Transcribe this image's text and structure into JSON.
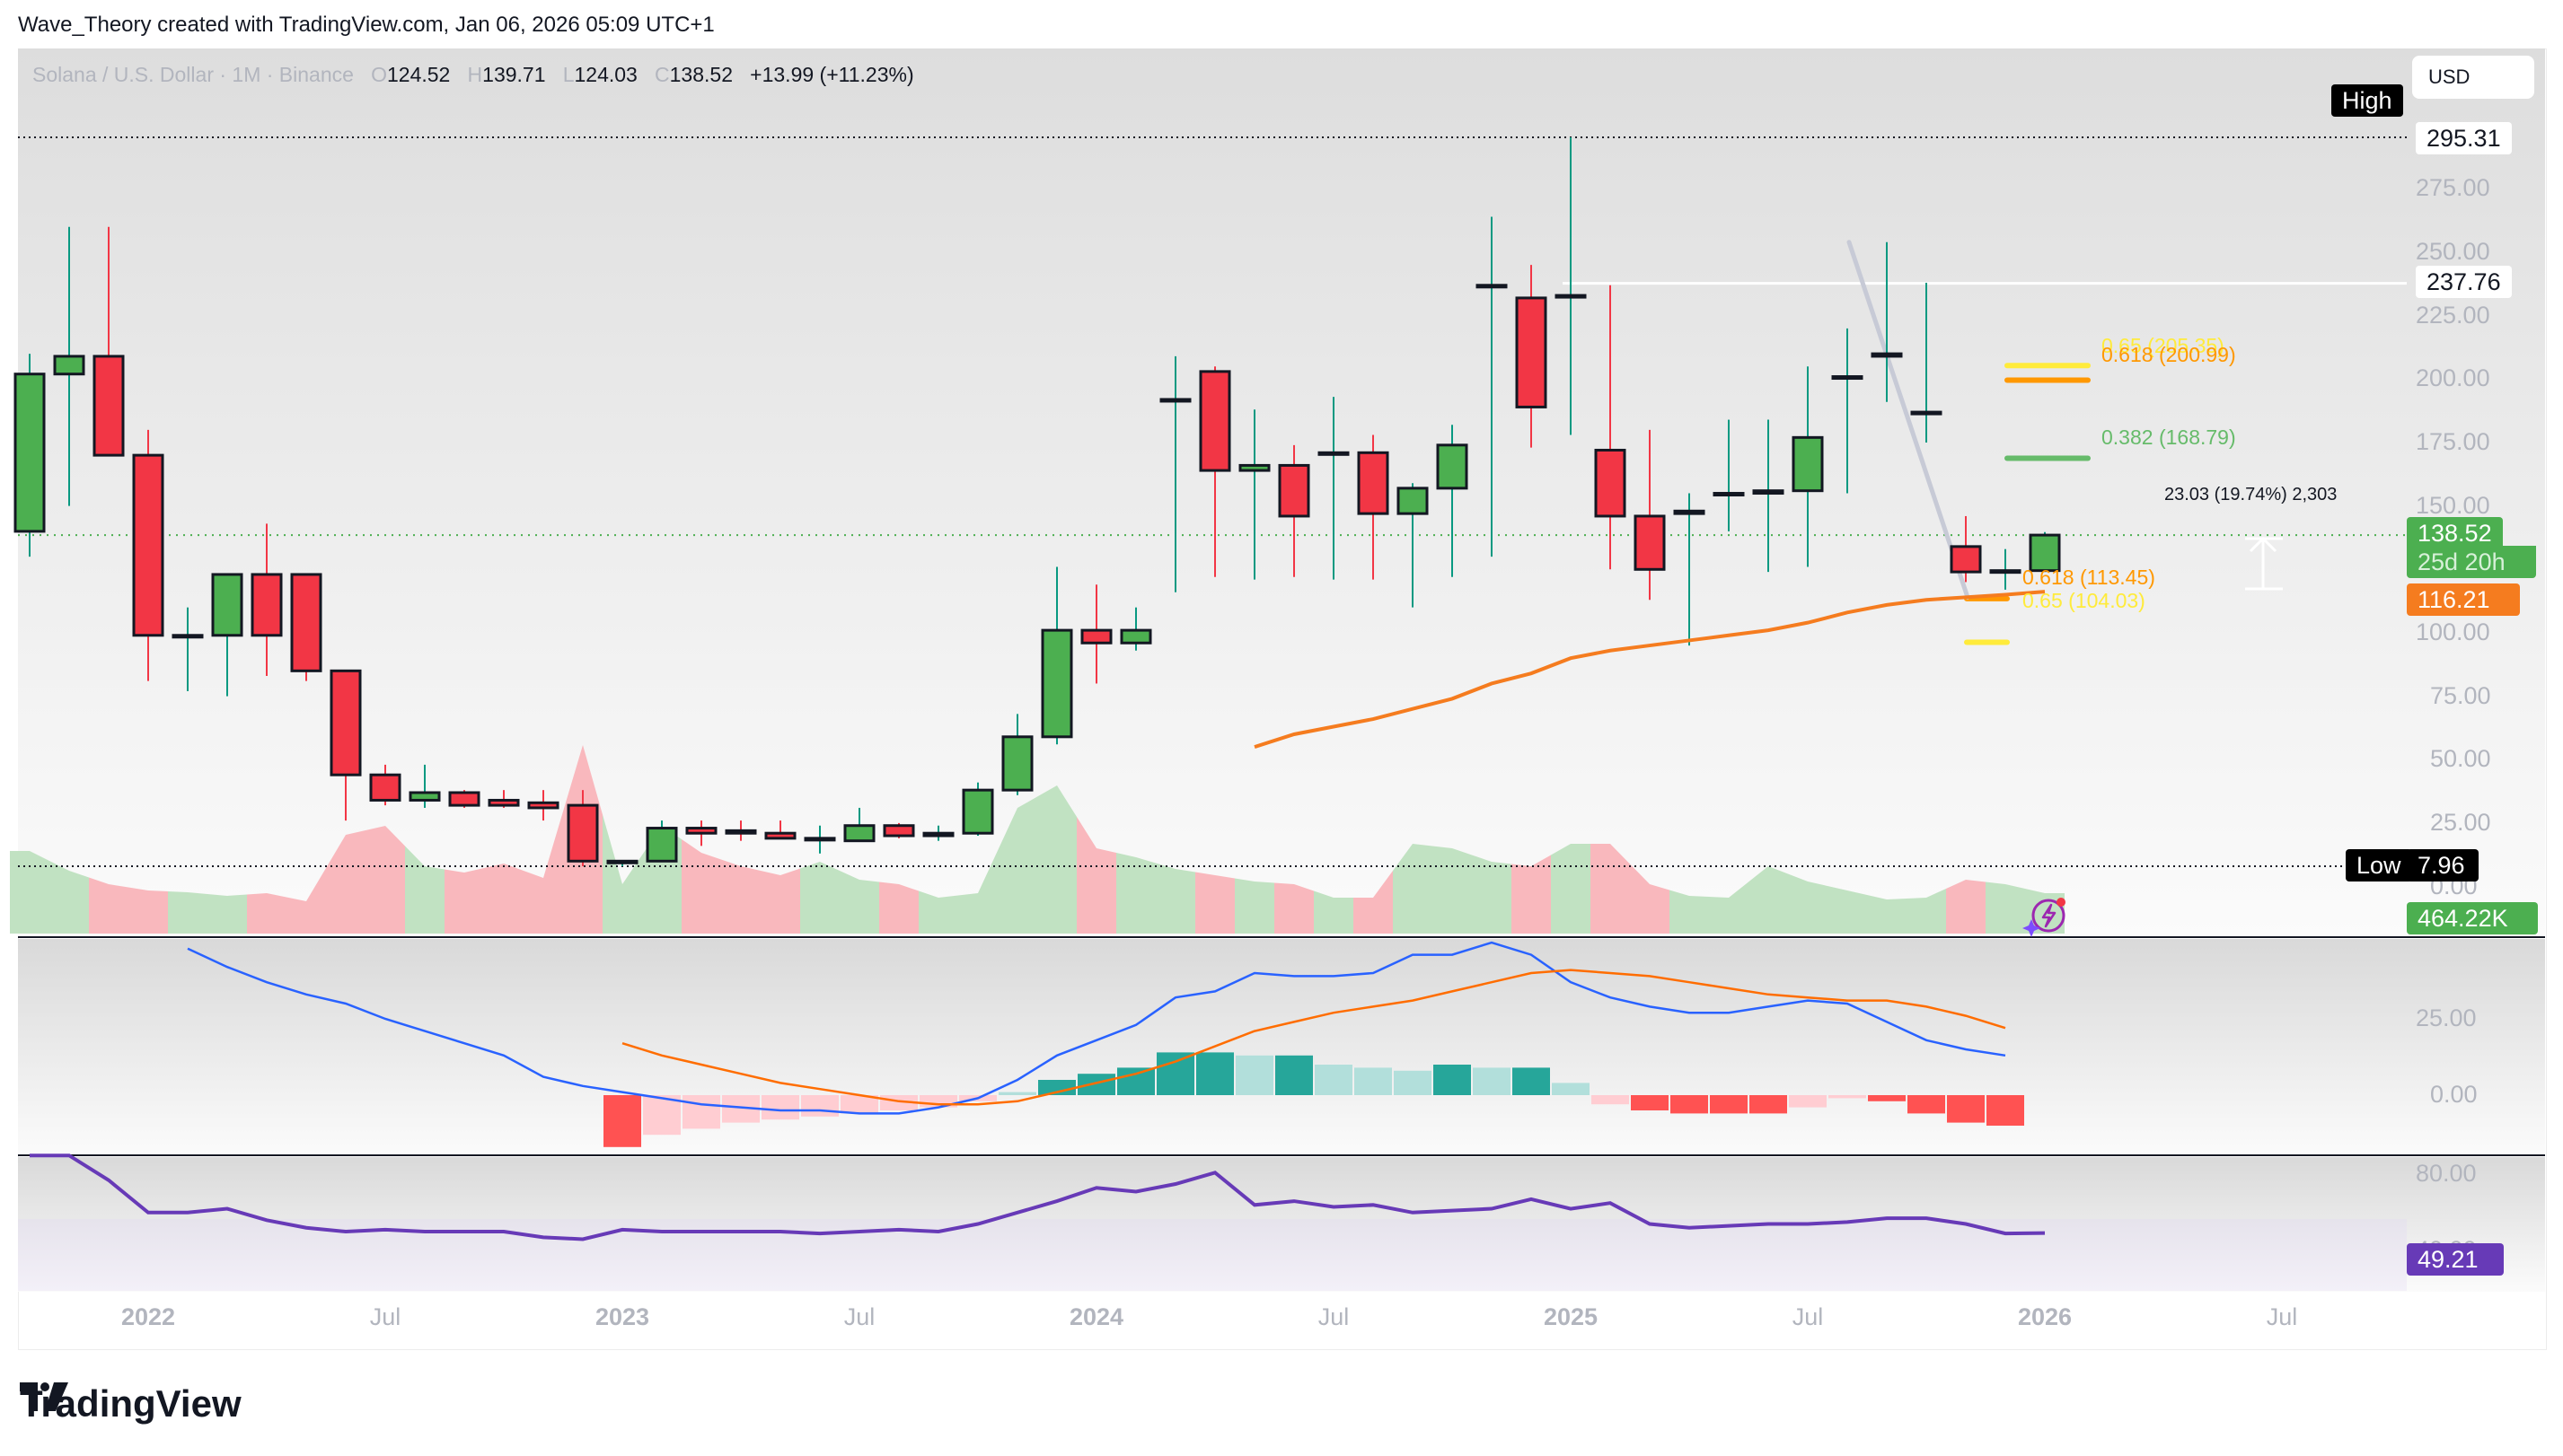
{
  "credit": "Wave_Theory created with TradingView.com, Jan 06, 2026 05:09 UTC+1",
  "legend": {
    "symbol": "Solana / U.S. Dollar · 1M · Binance",
    "o_label": "O",
    "o": "124.52",
    "h_label": "H",
    "h": "139.71",
    "l_label": "L",
    "l": "124.03",
    "c_label": "C",
    "c": "138.52",
    "change": "+13.99 (+11.23%)"
  },
  "currency": "USD",
  "price_axis": [
    "275.00",
    "250.00",
    "225.00",
    "200.00",
    "175.00",
    "150.00",
    "100.00",
    "75.00",
    "50.00",
    "25.00",
    "0.00"
  ],
  "macd_axis": [
    "25.00",
    "0.00"
  ],
  "rsi_axis": [
    "80.00",
    "40.00"
  ],
  "time_axis": [
    {
      "label": "2022",
      "year": true
    },
    {
      "label": "Jul",
      "year": false
    },
    {
      "label": "2023",
      "year": true
    },
    {
      "label": "Jul",
      "year": false
    },
    {
      "label": "2024",
      "year": true
    },
    {
      "label": "Jul",
      "year": false
    },
    {
      "label": "2025",
      "year": true
    },
    {
      "label": "Jul",
      "year": false
    },
    {
      "label": "2026",
      "year": true
    },
    {
      "label": "Jul",
      "year": false
    }
  ],
  "tags": {
    "high_label": "High",
    "high_value": "295.31",
    "low_label": "Low",
    "low_value": "7.96",
    "resistance": "237.76",
    "last_price": "138.52",
    "countdown": "25d 20h",
    "ema": "116.21",
    "volume": "464.22K",
    "rsi": "49.21"
  },
  "fib_labels": {
    "upper_065": "0.65 (205.35)",
    "upper_0618": "0.618 (200.99)",
    "upper_0382": "0.382 (168.79)",
    "lower_0618": "0.618 (113.45)",
    "lower_065": "0.65 (104.03)",
    "measure": "23.03 (19.74%) 2,303"
  },
  "colors": {
    "up": "#4caf50",
    "down": "#f23645",
    "wick_up": "#089981",
    "ema": "#f57c1f",
    "macd": "#2962ff",
    "signal": "#ff6d00",
    "rsi": "#673ab7",
    "fib_yellow": "#ffeb3b",
    "fib_orange": "#ff9800",
    "fib_green": "#66bb6a"
  },
  "brand": "TradingView",
  "chart_data": {
    "type": "candlestick",
    "title": "Solana / U.S. Dollar · 1M · Binance",
    "x": [
      "2021-10",
      "2021-11",
      "2021-12",
      "2022-01",
      "2022-02",
      "2022-03",
      "2022-04",
      "2022-05",
      "2022-06",
      "2022-07",
      "2022-08",
      "2022-09",
      "2022-10",
      "2022-11",
      "2022-12",
      "2023-01",
      "2023-02",
      "2023-03",
      "2023-04",
      "2023-05",
      "2023-06",
      "2023-07",
      "2023-08",
      "2023-09",
      "2023-10",
      "2023-11",
      "2023-12",
      "2024-01",
      "2024-02",
      "2024-03",
      "2024-04",
      "2024-05",
      "2024-06",
      "2024-07",
      "2024-08",
      "2024-09",
      "2024-10",
      "2024-11",
      "2024-12",
      "2025-01",
      "2025-02",
      "2025-03",
      "2025-04",
      "2025-05",
      "2025-06",
      "2025-07",
      "2025-08",
      "2025-09",
      "2025-10",
      "2025-11",
      "2025-12",
      "2026-01"
    ],
    "open": [
      140,
      202,
      209,
      170,
      99,
      99,
      123,
      123,
      85,
      44,
      34,
      37,
      34,
      33,
      32,
      10,
      10,
      23,
      22,
      21,
      19,
      18,
      24,
      20,
      21,
      38,
      59,
      101,
      96,
      192,
      203,
      164,
      166,
      171,
      171,
      147,
      157,
      237,
      232,
      233,
      172,
      146,
      147,
      155,
      155,
      156,
      201,
      209,
      187,
      134,
      124,
      124.52
    ],
    "high": [
      210,
      260,
      260,
      180,
      110,
      120,
      143,
      123,
      85,
      48,
      48,
      38,
      38,
      38,
      38,
      10,
      26,
      26,
      26,
      26,
      24,
      31,
      25,
      24,
      41,
      68,
      126,
      119,
      110,
      209,
      205,
      188,
      174,
      193,
      178,
      159,
      182,
      264,
      245,
      295.31,
      237,
      180,
      155,
      184,
      184,
      205,
      220,
      254,
      238,
      146,
      133,
      139.71
    ],
    "low": [
      130,
      150,
      170,
      81,
      77,
      75,
      83,
      81,
      26,
      32,
      31,
      31,
      31,
      26,
      8,
      8,
      10,
      16,
      18,
      19,
      13,
      20,
      19,
      18,
      20,
      36,
      56,
      80,
      93,
      116,
      122,
      121,
      122,
      121,
      121,
      110,
      122,
      130,
      173,
      178,
      125,
      113,
      95,
      140,
      124,
      126,
      155,
      191,
      175,
      120,
      117,
      124.03
    ],
    "close": [
      202,
      209,
      170,
      99,
      99,
      123,
      99,
      85,
      44,
      34,
      37,
      32,
      32,
      31,
      10,
      10,
      23,
      21,
      21,
      19,
      19,
      24,
      20,
      21,
      38,
      59,
      101,
      96,
      101,
      192,
      164,
      166,
      146,
      171,
      147,
      157,
      174,
      237,
      189,
      233,
      146,
      125,
      148,
      155,
      156,
      177,
      201,
      210,
      187,
      124,
      124.52,
      138.52
    ],
    "overlays": {
      "ema_level": 116.21,
      "horizontal_line": 237.76,
      "all_time_high": 295.31,
      "range_low": 7.96,
      "fib_upper": [
        {
          "level": 0.65,
          "price": 205.35
        },
        {
          "level": 0.618,
          "price": 200.99
        },
        {
          "level": 0.382,
          "price": 168.79
        }
      ],
      "fib_lower": [
        {
          "level": 0.618,
          "price": 113.45
        },
        {
          "level": 0.65,
          "price": 104.03
        }
      ],
      "measure": "23.03 (19.74%) 2,303"
    },
    "volume_last": "464.22K",
    "macd": {
      "ylim": [
        -30,
        50
      ],
      "ticks": [
        0,
        25
      ]
    },
    "rsi": {
      "last": 49.21,
      "ticks": [
        40,
        80
      ]
    },
    "ylim": [
      0,
      310
    ],
    "ylabel": "USD"
  }
}
